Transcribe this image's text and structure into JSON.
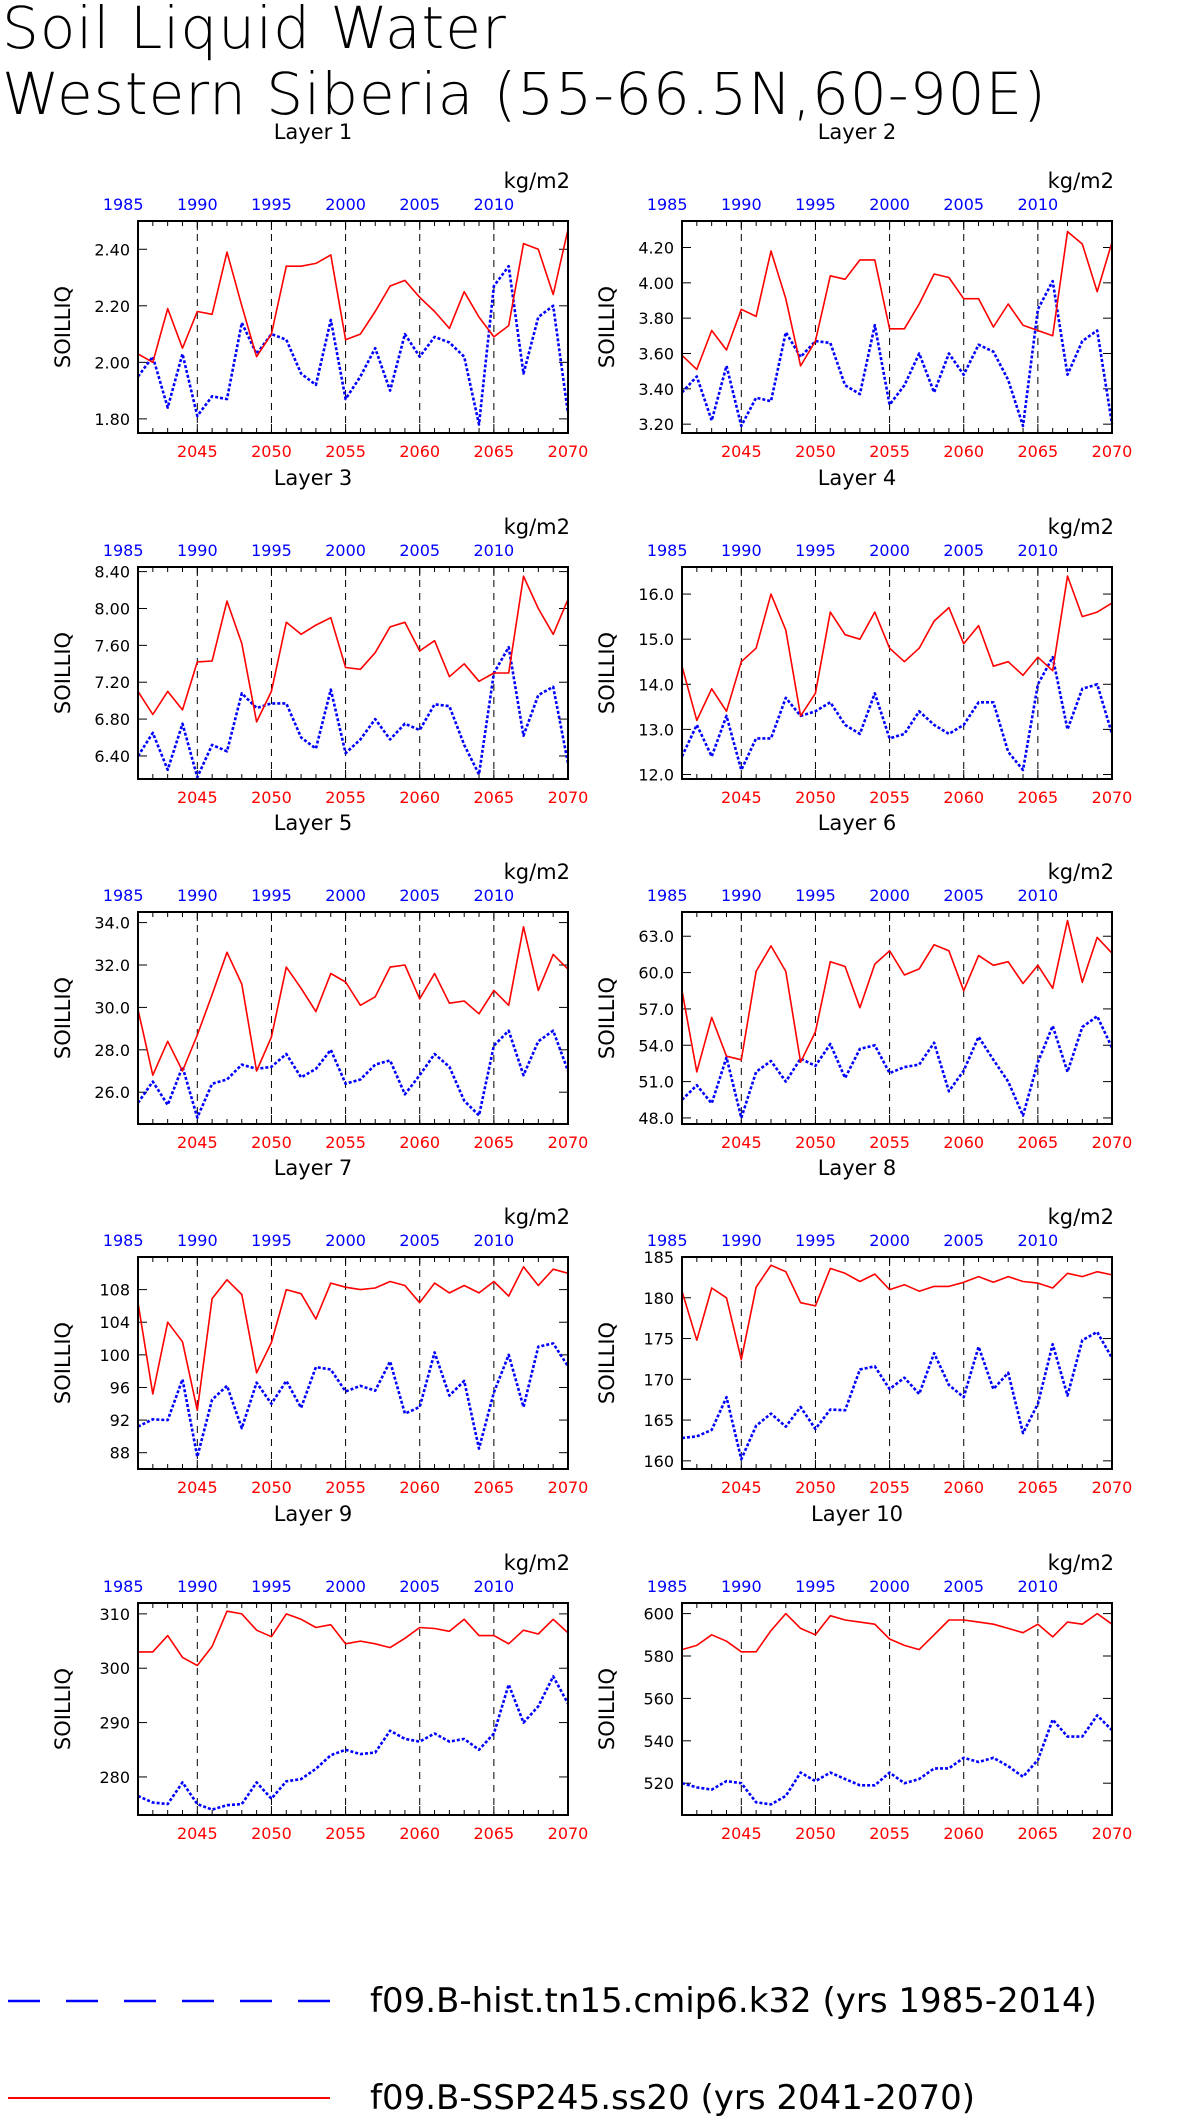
{
  "figure": {
    "title_line1": "Soil Liquid Water",
    "title_line2": "Western Siberia (55-66.5N,60-90E)"
  },
  "colors": {
    "hist": "#0000ff",
    "ssp": "#ff0000"
  },
  "legend": {
    "hist_label": "f09.B-hist.tn15.cmip6.k32 (yrs 1985-2014)",
    "ssp_label": "f09.B-SSP245.ss20 (yrs 2041-2070)"
  },
  "chart_data": [
    {
      "type": "line",
      "title": "Layer 1",
      "units": "kg/m2",
      "ylabel": "SOILLIQ",
      "ylim": [
        1.75,
        2.5
      ],
      "yticks": [
        "1.80",
        "2.00",
        "2.20",
        "2.40"
      ],
      "x_top_ticks": [
        "1985",
        "1990",
        "1995",
        "2000",
        "2005",
        "2010"
      ],
      "x_bottom_ticks": [
        "2045",
        "2050",
        "2055",
        "2060",
        "2065",
        "2070"
      ],
      "series": [
        {
          "name": "f09.B-hist.tn15.cmip6.k32 (yrs 1985-2014)",
          "x_start": 1985,
          "values": [
            1.95,
            2.02,
            1.84,
            2.03,
            1.81,
            1.88,
            1.87,
            2.14,
            2.03,
            2.1,
            2.08,
            1.96,
            1.92,
            2.15,
            1.87,
            1.95,
            2.05,
            1.9,
            2.1,
            2.02,
            2.09,
            2.07,
            2.02,
            1.78,
            2.27,
            2.34,
            1.96,
            2.16,
            2.2,
            1.82
          ]
        },
        {
          "name": "f09.B-SSP245.ss20 (yrs 2041-2070)",
          "x_start": 2041,
          "values": [
            2.03,
            2.0,
            2.19,
            2.05,
            2.18,
            2.17,
            2.39,
            2.2,
            2.02,
            2.1,
            2.34,
            2.34,
            2.35,
            2.38,
            2.08,
            2.1,
            2.18,
            2.27,
            2.29,
            2.23,
            2.18,
            2.12,
            2.25,
            2.16,
            2.09,
            2.13,
            2.42,
            2.4,
            2.24,
            2.47
          ]
        }
      ]
    },
    {
      "type": "line",
      "title": "Layer 2",
      "units": "kg/m2",
      "ylabel": "SOILLIQ",
      "ylim": [
        3.15,
        4.35
      ],
      "yticks": [
        "3.20",
        "3.40",
        "3.60",
        "3.80",
        "4.00",
        "4.20"
      ],
      "x_top_ticks": [
        "1985",
        "1990",
        "1995",
        "2000",
        "2005",
        "2010"
      ],
      "x_bottom_ticks": [
        "2045",
        "2050",
        "2055",
        "2060",
        "2065",
        "2070"
      ],
      "series": [
        {
          "name": "f09.B-hist.tn15.cmip6.k32 (yrs 1985-2014)",
          "x_start": 1985,
          "values": [
            3.38,
            3.47,
            3.22,
            3.53,
            3.19,
            3.35,
            3.33,
            3.72,
            3.58,
            3.67,
            3.66,
            3.42,
            3.37,
            3.76,
            3.31,
            3.42,
            3.6,
            3.38,
            3.6,
            3.48,
            3.65,
            3.61,
            3.45,
            3.19,
            3.85,
            4.01,
            3.48,
            3.67,
            3.73,
            3.2
          ]
        },
        {
          "name": "f09.B-SSP245.ss20 (yrs 2041-2070)",
          "x_start": 2041,
          "values": [
            3.59,
            3.51,
            3.73,
            3.62,
            3.85,
            3.81,
            4.18,
            3.91,
            3.53,
            3.67,
            4.04,
            4.02,
            4.13,
            4.13,
            3.74,
            3.74,
            3.88,
            4.05,
            4.03,
            3.91,
            3.91,
            3.75,
            3.88,
            3.76,
            3.73,
            3.7,
            4.29,
            4.22,
            3.95,
            4.23
          ]
        }
      ]
    },
    {
      "type": "line",
      "title": "Layer 3",
      "units": "kg/m2",
      "ylabel": "SOILLIQ",
      "ylim": [
        6.15,
        8.45
      ],
      "yticks": [
        "6.40",
        "6.80",
        "7.20",
        "7.60",
        "8.00",
        "8.40"
      ],
      "x_top_ticks": [
        "1985",
        "1990",
        "1995",
        "2000",
        "2005",
        "2010"
      ],
      "x_bottom_ticks": [
        "2045",
        "2050",
        "2055",
        "2060",
        "2065",
        "2070"
      ],
      "series": [
        {
          "name": "f09.B-hist.tn15.cmip6.k32 (yrs 1985-2014)",
          "x_start": 1985,
          "values": [
            6.4,
            6.65,
            6.25,
            6.75,
            6.17,
            6.52,
            6.45,
            7.08,
            6.92,
            6.97,
            6.97,
            6.6,
            6.48,
            7.12,
            6.43,
            6.58,
            6.8,
            6.58,
            6.75,
            6.68,
            6.96,
            6.94,
            6.52,
            6.2,
            7.3,
            7.58,
            6.62,
            7.06,
            7.15,
            6.32
          ]
        },
        {
          "name": "f09.B-SSP245.ss20 (yrs 2041-2070)",
          "x_start": 2041,
          "values": [
            7.1,
            6.85,
            7.1,
            6.9,
            7.42,
            7.43,
            8.08,
            7.62,
            6.77,
            7.1,
            7.85,
            7.72,
            7.82,
            7.9,
            7.36,
            7.34,
            7.52,
            7.8,
            7.85,
            7.54,
            7.65,
            7.26,
            7.4,
            7.21,
            7.3,
            7.3,
            8.35,
            8.0,
            7.72,
            8.1
          ]
        }
      ]
    },
    {
      "type": "line",
      "title": "Layer 4",
      "units": "kg/m2",
      "ylabel": "SOILLIQ",
      "ylim": [
        11.9,
        16.6
      ],
      "yticks": [
        "12.0",
        "13.0",
        "14.0",
        "15.0",
        "16.0"
      ],
      "x_top_ticks": [
        "1985",
        "1990",
        "1995",
        "2000",
        "2005",
        "2010"
      ],
      "x_bottom_ticks": [
        "2045",
        "2050",
        "2055",
        "2060",
        "2065",
        "2070"
      ],
      "series": [
        {
          "name": "f09.B-hist.tn15.cmip6.k32 (yrs 1985-2014)",
          "x_start": 1985,
          "values": [
            12.4,
            13.1,
            12.4,
            13.3,
            12.1,
            12.8,
            12.8,
            13.7,
            13.3,
            13.4,
            13.6,
            13.1,
            12.9,
            13.8,
            12.8,
            12.9,
            13.4,
            13.1,
            12.9,
            13.1,
            13.6,
            13.6,
            12.5,
            12.1,
            14.0,
            14.6,
            13.0,
            13.9,
            14.0,
            12.9
          ]
        },
        {
          "name": "f09.B-SSP245.ss20 (yrs 2041-2070)",
          "x_start": 2041,
          "values": [
            14.4,
            13.2,
            13.9,
            13.4,
            14.5,
            14.8,
            16.0,
            15.2,
            13.3,
            13.8,
            15.6,
            15.1,
            15.0,
            15.6,
            14.8,
            14.5,
            14.8,
            15.4,
            15.7,
            14.9,
            15.3,
            14.4,
            14.5,
            14.2,
            14.6,
            14.3,
            16.4,
            15.5,
            15.6,
            15.8
          ]
        }
      ]
    },
    {
      "type": "line",
      "title": "Layer 5",
      "units": "kg/m2",
      "ylabel": "SOILLIQ",
      "ylim": [
        24.5,
        34.5
      ],
      "yticks": [
        "26.0",
        "28.0",
        "30.0",
        "32.0",
        "34.0"
      ],
      "x_top_ticks": [
        "1985",
        "1990",
        "1995",
        "2000",
        "2005",
        "2010"
      ],
      "x_bottom_ticks": [
        "2045",
        "2050",
        "2055",
        "2060",
        "2065",
        "2070"
      ],
      "series": [
        {
          "name": "f09.B-hist.tn15.cmip6.k32 (yrs 1985-2014)",
          "x_start": 1985,
          "values": [
            25.5,
            26.5,
            25.4,
            27.2,
            24.8,
            26.4,
            26.6,
            27.3,
            27.1,
            27.2,
            27.8,
            26.7,
            27.1,
            28.0,
            26.4,
            26.6,
            27.3,
            27.5,
            25.9,
            26.8,
            27.8,
            27.2,
            25.6,
            24.9,
            28.2,
            28.9,
            26.8,
            28.4,
            28.9,
            27.0
          ]
        },
        {
          "name": "f09.B-SSP245.ss20 (yrs 2041-2070)",
          "x_start": 2041,
          "values": [
            29.9,
            26.8,
            28.4,
            27.0,
            28.7,
            30.6,
            32.6,
            31.1,
            27.0,
            28.6,
            31.9,
            30.9,
            29.8,
            31.6,
            31.2,
            30.1,
            30.5,
            31.9,
            32.0,
            30.4,
            31.6,
            30.2,
            30.3,
            29.7,
            30.8,
            30.1,
            33.8,
            30.8,
            32.5,
            31.8
          ]
        }
      ]
    },
    {
      "type": "line",
      "title": "Layer 6",
      "units": "kg/m2",
      "ylabel": "SOILLIQ",
      "ylim": [
        47.5,
        65.0
      ],
      "yticks": [
        "48.0",
        "51.0",
        "54.0",
        "57.0",
        "60.0",
        "63.0"
      ],
      "x_top_ticks": [
        "1985",
        "1990",
        "1995",
        "2000",
        "2005",
        "2010"
      ],
      "x_bottom_ticks": [
        "2045",
        "2050",
        "2055",
        "2060",
        "2065",
        "2070"
      ],
      "series": [
        {
          "name": "f09.B-hist.tn15.cmip6.k32 (yrs 1985-2014)",
          "x_start": 1985,
          "values": [
            49.5,
            50.7,
            49.2,
            53.0,
            48.0,
            51.8,
            52.7,
            51.0,
            52.9,
            52.3,
            54.1,
            51.3,
            53.7,
            54.0,
            51.7,
            52.2,
            52.4,
            54.2,
            50.2,
            51.9,
            54.7,
            52.8,
            51.0,
            48.2,
            52.6,
            55.6,
            51.8,
            55.5,
            56.4,
            53.8
          ]
        },
        {
          "name": "f09.B-SSP245.ss20 (yrs 2041-2070)",
          "x_start": 2041,
          "values": [
            58.5,
            51.8,
            56.3,
            53.1,
            52.8,
            60.1,
            62.2,
            60.1,
            52.6,
            55.1,
            60.9,
            60.5,
            57.1,
            60.7,
            61.8,
            59.8,
            60.3,
            62.3,
            61.8,
            58.5,
            61.4,
            60.6,
            60.9,
            59.1,
            60.6,
            58.7,
            64.3,
            59.2,
            62.9,
            61.6
          ]
        }
      ]
    },
    {
      "type": "line",
      "title": "Layer 7",
      "units": "kg/m2",
      "ylabel": "SOILLIQ",
      "ylim": [
        86.0,
        112.0
      ],
      "yticks": [
        "88",
        "92",
        "96",
        "100",
        "104",
        "108"
      ],
      "x_top_ticks": [
        "1985",
        "1990",
        "1995",
        "2000",
        "2005",
        "2010"
      ],
      "x_bottom_ticks": [
        "2045",
        "2050",
        "2055",
        "2060",
        "2065",
        "2070"
      ],
      "series": [
        {
          "name": "f09.B-hist.tn15.cmip6.k32 (yrs 1985-2014)",
          "x_start": 1985,
          "values": [
            91.2,
            92.1,
            92.0,
            97.0,
            87.5,
            94.5,
            96.2,
            91.0,
            96.6,
            94.0,
            96.8,
            93.5,
            98.5,
            98.2,
            95.5,
            96.2,
            95.6,
            99.2,
            92.8,
            93.6,
            100.3,
            95.0,
            96.8,
            88.5,
            95.4,
            100.0,
            93.6,
            101.0,
            101.4,
            98.6
          ]
        },
        {
          "name": "f09.B-SSP245.ss20 (yrs 2041-2070)",
          "x_start": 2041,
          "values": [
            106.4,
            95.2,
            104.0,
            101.6,
            93.2,
            106.9,
            109.2,
            107.4,
            97.8,
            101.5,
            108.0,
            107.5,
            104.4,
            108.8,
            108.3,
            108.0,
            108.2,
            109.0,
            108.5,
            106.4,
            108.8,
            107.6,
            108.5,
            107.6,
            109.0,
            107.2,
            110.8,
            108.5,
            110.5,
            110.0
          ]
        }
      ]
    },
    {
      "type": "line",
      "title": "Layer 8",
      "units": "kg/m2",
      "ylabel": "SOILLIQ",
      "ylim": [
        159.0,
        185.0
      ],
      "yticks": [
        "160",
        "165",
        "170",
        "175",
        "180",
        "185"
      ],
      "x_top_ticks": [
        "1985",
        "1990",
        "1995",
        "2000",
        "2005",
        "2010"
      ],
      "x_bottom_ticks": [
        "2045",
        "2050",
        "2055",
        "2060",
        "2065",
        "2070"
      ],
      "series": [
        {
          "name": "f09.B-hist.tn15.cmip6.k32 (yrs 1985-2014)",
          "x_start": 1985,
          "values": [
            162.8,
            163.0,
            163.8,
            167.8,
            160.2,
            164.3,
            165.8,
            164.2,
            166.6,
            163.9,
            166.3,
            166.2,
            171.2,
            171.6,
            168.8,
            170.2,
            168.2,
            173.2,
            169.3,
            167.8,
            174.0,
            168.8,
            170.8,
            163.4,
            167.0,
            174.3,
            168.0,
            174.8,
            175.8,
            172.6
          ]
        },
        {
          "name": "f09.B-SSP245.ss20 (yrs 2041-2070)",
          "x_start": 2041,
          "values": [
            180.8,
            174.8,
            181.2,
            180.0,
            172.4,
            181.3,
            184.0,
            183.2,
            179.4,
            179.0,
            183.6,
            183.0,
            182.0,
            182.9,
            181.0,
            181.6,
            180.8,
            181.4,
            181.4,
            181.9,
            182.6,
            181.9,
            182.6,
            182.0,
            181.8,
            181.2,
            183.0,
            182.6,
            183.2,
            182.8
          ]
        }
      ]
    },
    {
      "type": "line",
      "title": "Layer 9",
      "units": "kg/m2",
      "ylabel": "SOILLIQ",
      "ylim": [
        273.0,
        312.0
      ],
      "yticks": [
        "280",
        "290",
        "300",
        "310"
      ],
      "x_top_ticks": [
        "1985",
        "1990",
        "1995",
        "2000",
        "2005",
        "2010"
      ],
      "x_bottom_ticks": [
        "2045",
        "2050",
        "2055",
        "2060",
        "2065",
        "2070"
      ],
      "series": [
        {
          "name": "f09.B-hist.tn15.cmip6.k32 (yrs 1985-2014)",
          "x_start": 1985,
          "values": [
            276.5,
            275.3,
            275.0,
            279.0,
            275.0,
            274.0,
            274.8,
            275.0,
            279.0,
            276.0,
            279.2,
            279.6,
            281.5,
            284.0,
            285.0,
            284.2,
            284.5,
            288.5,
            287.0,
            286.5,
            288.0,
            286.5,
            287.0,
            285.0,
            288.0,
            297.0,
            290.0,
            293.0,
            298.5,
            293.5
          ]
        },
        {
          "name": "f09.B-SSP245.ss20 (yrs 2041-2070)",
          "x_start": 2041,
          "values": [
            303.0,
            303.0,
            306.0,
            302.0,
            300.5,
            304.0,
            310.5,
            310.0,
            307.0,
            305.8,
            310.0,
            309.0,
            307.5,
            308.0,
            304.5,
            305.0,
            304.5,
            303.8,
            305.5,
            307.5,
            307.3,
            306.8,
            309.0,
            306.0,
            306.0,
            304.5,
            307.0,
            306.3,
            309.0,
            306.5
          ]
        }
      ]
    },
    {
      "type": "line",
      "title": "Layer 10",
      "units": "kg/m2",
      "ylabel": "SOILLIQ",
      "ylim": [
        505.0,
        605.0
      ],
      "yticks": [
        "520",
        "540",
        "560",
        "580",
        "600"
      ],
      "x_top_ticks": [
        "1985",
        "1990",
        "1995",
        "2000",
        "2005",
        "2010"
      ],
      "x_bottom_ticks": [
        "2045",
        "2050",
        "2055",
        "2060",
        "2065",
        "2070"
      ],
      "series": [
        {
          "name": "f09.B-hist.tn15.cmip6.k32 (yrs 1985-2014)",
          "x_start": 1985,
          "values": [
            520.0,
            518.0,
            517.0,
            521.0,
            520.0,
            511.0,
            510.0,
            514.0,
            525.0,
            521.0,
            525.0,
            522.0,
            519.0,
            519.0,
            525.0,
            520.0,
            522.0,
            527.0,
            527.0,
            532.0,
            530.0,
            532.0,
            528.0,
            523.0,
            531.0,
            550.0,
            542.0,
            542.0,
            552.0,
            545.0
          ]
        },
        {
          "name": "f09.B-SSP245.ss20 (yrs 2041-2070)",
          "x_start": 2041,
          "values": [
            583.0,
            585.0,
            590.0,
            587.0,
            582.0,
            582.0,
            592.0,
            600.0,
            593.0,
            590.0,
            599.0,
            597.0,
            596.0,
            595.0,
            588.0,
            585.0,
            583.0,
            590.0,
            597.0,
            597.0,
            596.0,
            595.0,
            593.0,
            591.0,
            595.0,
            589.0,
            596.0,
            595.0,
            600.0,
            595.0
          ]
        }
      ]
    }
  ]
}
